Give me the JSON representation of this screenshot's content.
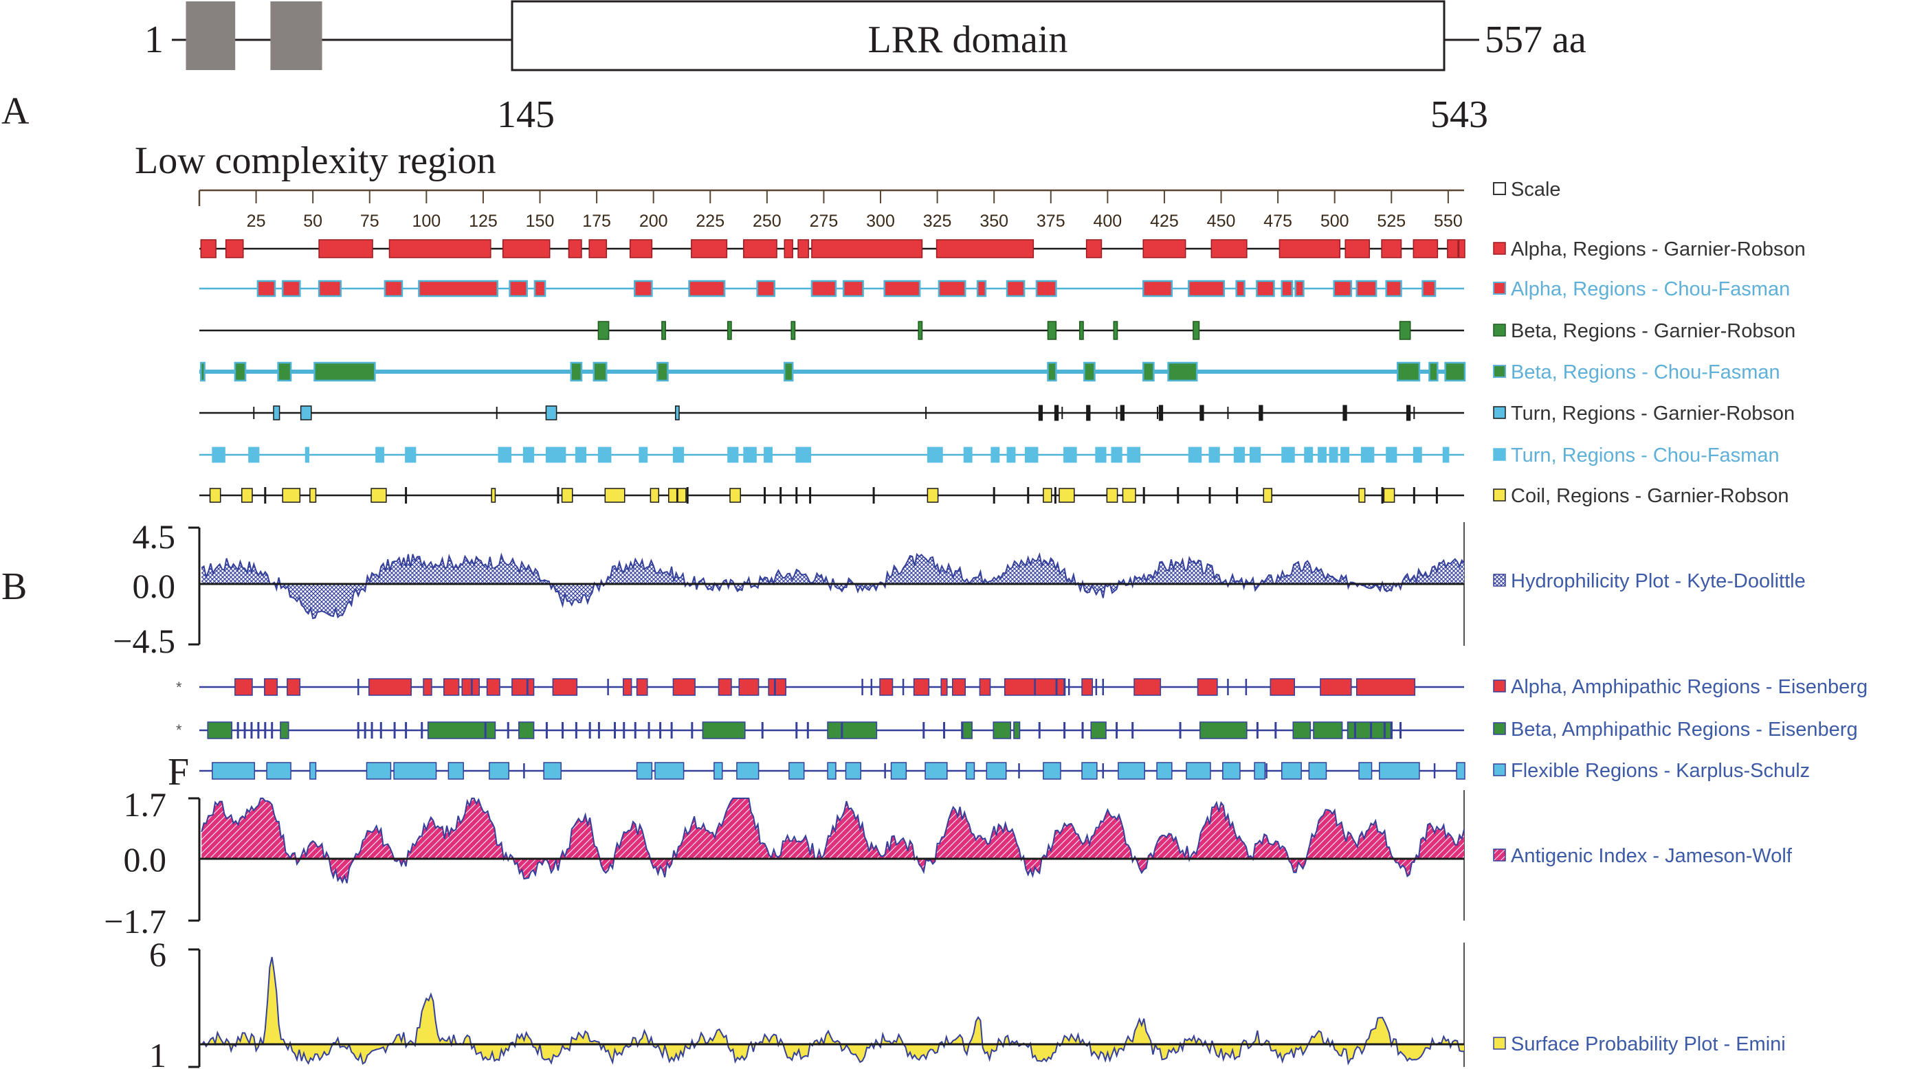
{
  "domain_diagram": {
    "start_label": "1",
    "end_label": "557 aa",
    "domain_label": "LRR domain",
    "domain_start": "145",
    "domain_end": "543",
    "lcr_label": "Low complexity region",
    "lcr_blocks": [
      [
        6,
        27
      ],
      [
        42,
        64
      ]
    ],
    "domain_range": [
      145,
      543
    ],
    "length": 557
  },
  "panel_labels": {
    "a": "A",
    "b": "B",
    "f": "F"
  },
  "scale": {
    "max": 557,
    "ticks": [
      "25",
      "50",
      "75",
      "100",
      "125",
      "150",
      "175",
      "200",
      "225",
      "250",
      "275",
      "300",
      "325",
      "350",
      "375",
      "400",
      "425",
      "450",
      "475",
      "500",
      "525",
      "550"
    ],
    "tick_values": [
      25,
      50,
      75,
      100,
      125,
      150,
      175,
      200,
      225,
      250,
      275,
      300,
      325,
      350,
      375,
      400,
      425,
      450,
      475,
      500,
      525,
      550
    ]
  },
  "legends": {
    "scale": "Scale",
    "alpha_gr": "Alpha,   Regions - Garnier-Robson",
    "alpha_cf": "Alpha, Regions - Chou-Fasman",
    "beta_gr": "Beta, Regions - Garnier-Robson",
    "beta_cf": "Beta, Regions - Chou-Fasman",
    "turn_gr": "Turn, Regions - Garnier-Robson",
    "turn_cf": "Turn, Regions - Chou-Fasman",
    "coil_gr": "Coil, Regions - Garnier-Robson",
    "hydro": "Hydrophilicity Plot - Kyte-Doolittle",
    "alpha_amph": "Alpha, Amphipathic Regions - Eisenberg",
    "beta_amph": "Beta, Amphipathic Regions - Eisenberg",
    "flex": "Flexible Regions - Karplus-Schulz",
    "antigenic": "Antigenic Index - Jameson-Wolf",
    "surface": "Surface Probability Plot - Emini"
  },
  "axis_labels": {
    "hydro": [
      "4.5",
      "0.0",
      "−4.5"
    ],
    "antigenic": [
      "1.7",
      "0.0",
      "−1.7"
    ],
    "surface": [
      "6",
      "1"
    ]
  },
  "colors": {
    "red": "#e5393f",
    "red_edge": "#9a1c22",
    "light_blue": "#5bbfe3",
    "cyan_line": "#4fb3d6",
    "green": "#3b8e3b",
    "green_edge": "#1e5a1e",
    "yellow": "#f6e64a",
    "navy": "#35409a",
    "magenta": "#e0307c",
    "black": "#1a1a1a",
    "legend_dark": "#333333",
    "legend_blue": "#3d5aa6",
    "legend_cyan": "#5fb0d8"
  },
  "tracks": {
    "alpha_gr": [
      [
        1,
        7
      ],
      [
        12,
        19
      ],
      [
        53,
        76
      ],
      [
        84,
        128
      ],
      [
        134,
        154
      ],
      [
        163,
        168
      ],
      [
        172,
        179
      ],
      [
        190,
        199
      ],
      [
        217,
        232
      ],
      [
        240,
        254
      ],
      [
        258,
        261
      ],
      [
        264,
        268
      ],
      [
        270,
        318
      ],
      [
        325,
        367
      ],
      [
        391,
        397
      ],
      [
        416,
        434
      ],
      [
        446,
        461
      ],
      [
        476,
        502
      ],
      [
        505,
        515
      ],
      [
        521,
        529
      ],
      [
        535,
        545
      ],
      [
        550,
        554
      ],
      [
        555,
        557
      ]
    ],
    "alpha_cf": [
      [
        26,
        33
      ],
      [
        37,
        44
      ],
      [
        53,
        62
      ],
      [
        82,
        89
      ],
      [
        97,
        131
      ],
      [
        137,
        144
      ],
      [
        148,
        152
      ],
      [
        192,
        199
      ],
      [
        216,
        231
      ],
      [
        246,
        253
      ],
      [
        270,
        280
      ],
      [
        284,
        292
      ],
      [
        302,
        317
      ],
      [
        326,
        337
      ],
      [
        343,
        346
      ],
      [
        356,
        363
      ],
      [
        369,
        377
      ],
      [
        416,
        428
      ],
      [
        436,
        451
      ],
      [
        457,
        460
      ],
      [
        466,
        473
      ],
      [
        477,
        481
      ],
      [
        483,
        486
      ],
      [
        500,
        507
      ],
      [
        510,
        518
      ],
      [
        523,
        529
      ],
      [
        539,
        544
      ]
    ],
    "beta_gr": [
      [
        176,
        180
      ],
      [
        204,
        205
      ],
      [
        233,
        234
      ],
      [
        261,
        262
      ],
      [
        317,
        318
      ],
      [
        374,
        377
      ],
      [
        388,
        389
      ],
      [
        403,
        404
      ],
      [
        438,
        440
      ],
      [
        529,
        533
      ]
    ],
    "beta_cf": [
      [
        1,
        2
      ],
      [
        16,
        20
      ],
      [
        35,
        40
      ],
      [
        51,
        77
      ],
      [
        164,
        168
      ],
      [
        174,
        179
      ],
      [
        202,
        206
      ],
      [
        258,
        261
      ],
      [
        374,
        377
      ],
      [
        390,
        394
      ],
      [
        416,
        420
      ],
      [
        427,
        439
      ],
      [
        528,
        537
      ],
      [
        542,
        545
      ],
      [
        549,
        557
      ]
    ],
    "turn_gr": [
      [
        33,
        35
      ],
      [
        45,
        49
      ],
      [
        153,
        157
      ],
      [
        210,
        211
      ]
    ],
    "turn_gr_ticks": [
      24,
      131,
      320,
      370,
      380,
      404,
      422,
      453,
      532,
      535
    ],
    "turn_gr_bold": [
      [
        370,
        371
      ],
      [
        377,
        378
      ],
      [
        391,
        392
      ],
      [
        406,
        407
      ],
      [
        423,
        424
      ],
      [
        441,
        442
      ],
      [
        467,
        468
      ],
      [
        504,
        505
      ],
      [
        532,
        533
      ]
    ],
    "turn_cf": [
      [
        6,
        11
      ],
      [
        22,
        26
      ],
      [
        47,
        48
      ],
      [
        78,
        81
      ],
      [
        91,
        95
      ],
      [
        132,
        137
      ],
      [
        143,
        147
      ],
      [
        153,
        156
      ],
      [
        156,
        161
      ],
      [
        166,
        170
      ],
      [
        176,
        181
      ],
      [
        194,
        197
      ],
      [
        209,
        213
      ],
      [
        233,
        237
      ],
      [
        240,
        245
      ],
      [
        249,
        252
      ],
      [
        263,
        269
      ],
      [
        321,
        327
      ],
      [
        337,
        340
      ],
      [
        349,
        352
      ],
      [
        356,
        359
      ],
      [
        364,
        369
      ],
      [
        381,
        386
      ],
      [
        395,
        399
      ],
      [
        402,
        406
      ],
      [
        409,
        414
      ],
      [
        436,
        441
      ],
      [
        445,
        449
      ],
      [
        456,
        460
      ],
      [
        463,
        467
      ],
      [
        477,
        482
      ],
      [
        487,
        490
      ],
      [
        493,
        496
      ],
      [
        498,
        501
      ],
      [
        503,
        506
      ],
      [
        512,
        517
      ],
      [
        523,
        527
      ],
      [
        535,
        538
      ],
      [
        548,
        550
      ]
    ],
    "coil_gr": [
      [
        5,
        9
      ],
      [
        19,
        23
      ],
      [
        37,
        44
      ],
      [
        49,
        51
      ],
      [
        76,
        82
      ],
      [
        129,
        130
      ],
      [
        160,
        164
      ],
      [
        179,
        187
      ],
      [
        199,
        202
      ],
      [
        207,
        210
      ],
      [
        211,
        214
      ],
      [
        234,
        238
      ],
      [
        321,
        325
      ],
      [
        372,
        375
      ],
      [
        379,
        385
      ],
      [
        400,
        404
      ],
      [
        407,
        412
      ],
      [
        469,
        472
      ],
      [
        511,
        513
      ],
      [
        522,
        526
      ]
    ],
    "coil_gr_ticks": [
      29,
      91,
      158,
      215,
      249,
      256,
      263,
      269,
      297,
      350,
      365,
      377,
      416,
      431,
      445,
      457,
      521,
      535,
      545
    ],
    "alpha_amph": [
      [
        16,
        23
      ],
      [
        29,
        34
      ],
      [
        39,
        44
      ],
      [
        75,
        93
      ],
      [
        99,
        102
      ],
      [
        108,
        114
      ],
      [
        116,
        123
      ],
      [
        127,
        132
      ],
      [
        138,
        144
      ],
      [
        145,
        147
      ],
      [
        156,
        166
      ],
      [
        187,
        190
      ],
      [
        193,
        197
      ],
      [
        209,
        218
      ],
      [
        229,
        234
      ],
      [
        238,
        246
      ],
      [
        251,
        253
      ],
      [
        254,
        258
      ],
      [
        300,
        305
      ],
      [
        315,
        321
      ],
      [
        327,
        329
      ],
      [
        332,
        337
      ],
      [
        344,
        348
      ],
      [
        355,
        377
      ],
      [
        378,
        381
      ],
      [
        389,
        393
      ],
      [
        412,
        423
      ],
      [
        440,
        448
      ],
      [
        472,
        482
      ],
      [
        494,
        507
      ],
      [
        510,
        535
      ]
    ],
    "alpha_amph_ticks": [
      70,
      120,
      180,
      292,
      296,
      310,
      368,
      381,
      383,
      395,
      398,
      453,
      461
    ],
    "beta_amph": [
      [
        4,
        14
      ],
      [
        36,
        39
      ],
      [
        101,
        130
      ],
      [
        141,
        147
      ],
      [
        222,
        240
      ],
      [
        277,
        298
      ],
      [
        336,
        340
      ],
      [
        350,
        357
      ],
      [
        359,
        361
      ],
      [
        393,
        399
      ],
      [
        441,
        461
      ],
      [
        482,
        489
      ],
      [
        491,
        503
      ],
      [
        506,
        525
      ]
    ],
    "beta_amph_ticks": [
      17,
      20,
      23,
      26,
      29,
      32,
      70,
      73,
      76,
      80,
      86,
      91,
      98,
      126,
      136,
      153,
      160,
      166,
      172,
      176,
      183,
      187,
      192,
      198,
      203,
      208,
      217,
      248,
      263,
      268,
      283,
      319,
      328,
      336,
      370,
      381,
      389,
      404,
      411,
      432,
      466,
      474,
      509,
      516,
      522,
      525,
      529
    ],
    "flex": [
      [
        6,
        24
      ],
      [
        30,
        40
      ],
      [
        49,
        51
      ],
      [
        74,
        84
      ],
      [
        86,
        104
      ],
      [
        110,
        116
      ],
      [
        128,
        136
      ],
      [
        152,
        159
      ],
      [
        193,
        199
      ],
      [
        201,
        213
      ],
      [
        227,
        230
      ],
      [
        237,
        246
      ],
      [
        260,
        266
      ],
      [
        277,
        280
      ],
      [
        285,
        291
      ],
      [
        305,
        311
      ],
      [
        320,
        329
      ],
      [
        338,
        341
      ],
      [
        347,
        355
      ],
      [
        372,
        379
      ],
      [
        389,
        395
      ],
      [
        405,
        416
      ],
      [
        422,
        428
      ],
      [
        435,
        445
      ],
      [
        451,
        458
      ],
      [
        465,
        469
      ],
      [
        477,
        485
      ],
      [
        489,
        496
      ],
      [
        511,
        516
      ],
      [
        520,
        537
      ],
      [
        554,
        557
      ]
    ],
    "flex_ticks": [
      143,
      302,
      361,
      398,
      470,
      544
    ]
  },
  "plots": {
    "hydro": {
      "range": [
        -4.5,
        4.5
      ]
    },
    "antigenic": {
      "range": [
        -1.7,
        1.7
      ]
    },
    "surface": {
      "range": [
        1,
        6
      ],
      "baseline": 2
    }
  }
}
